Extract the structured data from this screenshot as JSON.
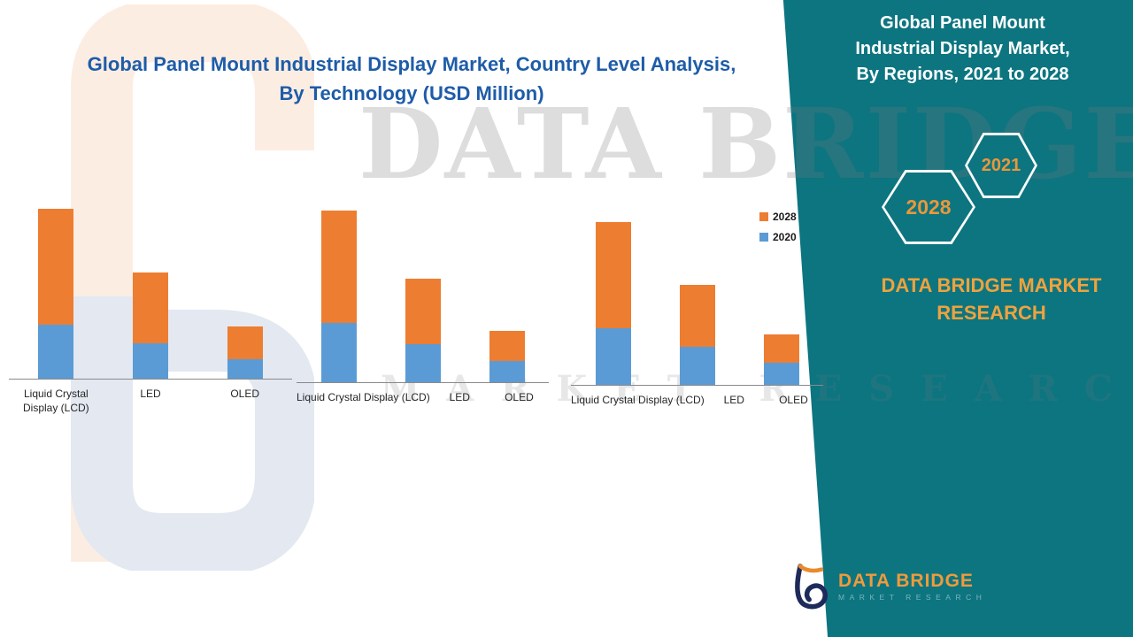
{
  "chart": {
    "title_line1": "Global Panel Mount Industrial Display Market, Country Level Analysis,",
    "title_line2": "By Technology (USD Million)"
  },
  "chart_data": {
    "type": "bar",
    "subtype": "stacked bars in three side-by-side country panels",
    "title": "Global Panel Mount Industrial Display Market, Country Level Analysis, By Technology (USD Million)",
    "ylabel": "USD Million",
    "axis_note": "No numeric axis or gridlines shown; values are relative estimates from bar heights",
    "legend_position": "right",
    "legend": [
      {
        "label": "2028",
        "color": "#ED7D31"
      },
      {
        "label": "2020",
        "color": "#5B9BD5"
      }
    ],
    "groups": [
      {
        "categories": [
          "Liquid Crystal Display (LCD)",
          "LED",
          "OLED"
        ],
        "series": [
          {
            "name": "2020",
            "values": [
              61,
              40,
              22
            ]
          },
          {
            "name": "2028",
            "values": [
              131,
              80,
              37
            ]
          }
        ]
      },
      {
        "categories": [
          "Liquid Crystal Display (LCD)",
          "LED",
          "OLED"
        ],
        "series": [
          {
            "name": "2020",
            "values": [
              67,
              43,
              24
            ]
          },
          {
            "name": "2028",
            "values": [
              127,
              74,
              34
            ]
          }
        ]
      },
      {
        "categories": [
          "Liquid Crystal Display (LCD)",
          "LED",
          "OLED"
        ],
        "series": [
          {
            "name": "2020",
            "values": [
              64,
              43,
              25
            ]
          },
          {
            "name": "2028",
            "values": [
              120,
              70,
              32
            ]
          }
        ]
      }
    ]
  },
  "right_panel": {
    "title_line1": "Global Panel Mount",
    "title_line2": "Industrial Display Market,",
    "title_line3": "By Regions, 2021 to 2028",
    "hex_back_label": "2028",
    "hex_front_label": "2021",
    "brand_line1": "DATA BRIDGE MARKET",
    "brand_line2": "RESEARCH"
  },
  "watermark": {
    "big_text": "DATA BRIDGE",
    "sub_text": "MARKET RESEARCH"
  },
  "footer_logo": {
    "name": "DATA BRIDGE",
    "tagline": "MARKET RESEARCH"
  },
  "colors": {
    "panel_teal": "#0C7580",
    "bar_2028": "#ED7D31",
    "bar_2020": "#5B9BD5",
    "title_blue": "#1E5CA8",
    "brand_orange": "#EFA23E"
  }
}
